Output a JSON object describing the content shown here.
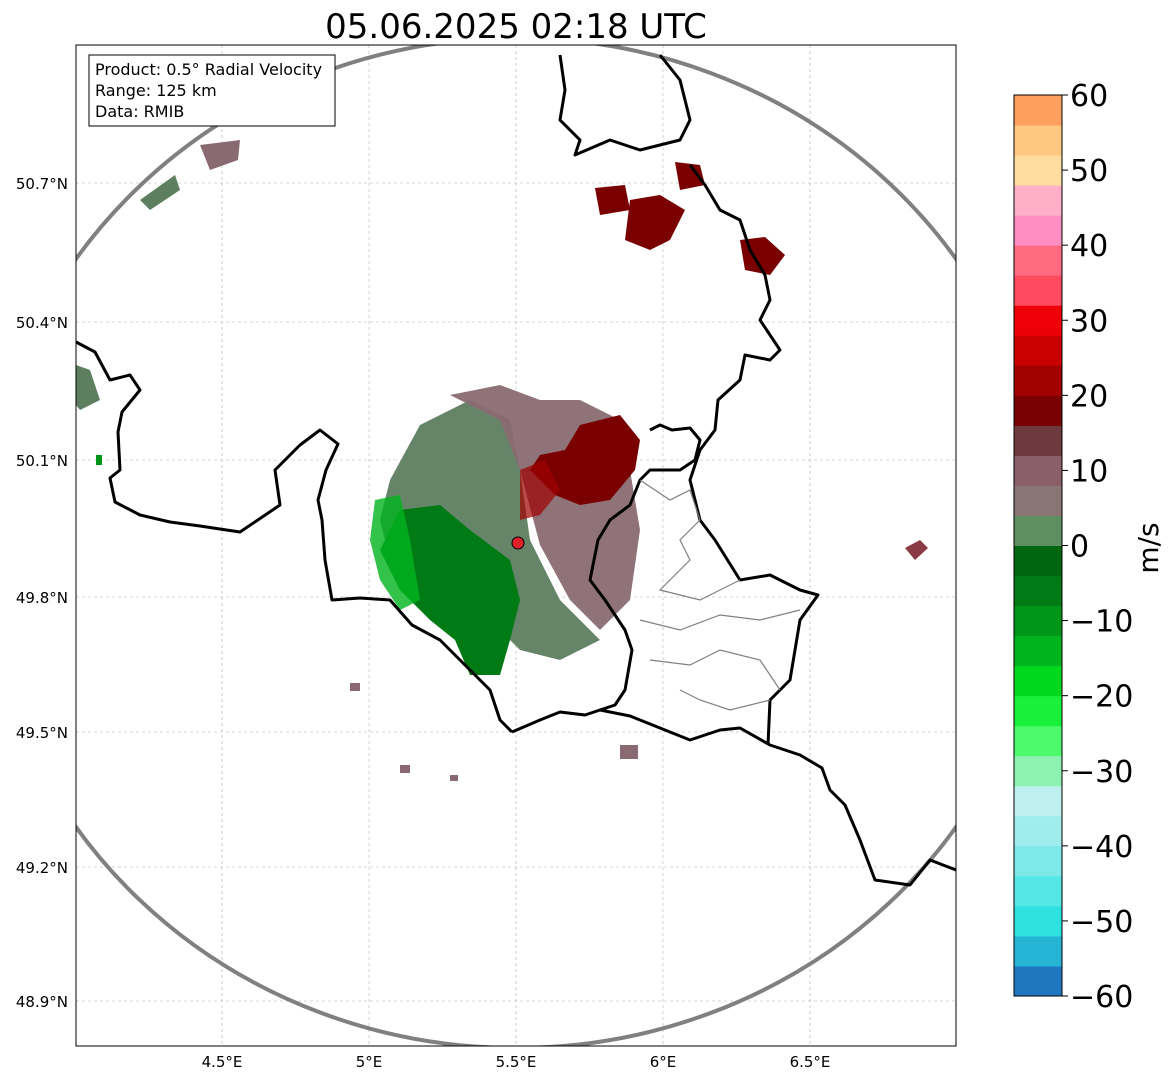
{
  "title": "05.06.2025 02:18 UTC",
  "info_box": {
    "product": "Product: 0.5° Radial Velocity",
    "range": "Range: 125 km",
    "data": "Data: RMIB"
  },
  "lat_ticks": [
    "50.7°N",
    "50.4°N",
    "50.1°N",
    "49.8°N",
    "49.5°N",
    "49.2°N",
    "48.9°N"
  ],
  "lon_ticks": [
    "4.5°E",
    "5°E",
    "5.5°E",
    "6°E",
    "6.5°E"
  ],
  "colorbar": {
    "label": "m/s",
    "ticks": [
      "60",
      "50",
      "40",
      "30",
      "20",
      "10",
      "0",
      "−10",
      "−20",
      "−30",
      "−40",
      "−50",
      "−60"
    ],
    "min": -60,
    "max": 60,
    "step": 5,
    "colors": [
      "#1f77c0",
      "#26b4d4",
      "#2ee0e0",
      "#55e6e6",
      "#7de9e9",
      "#a0eded",
      "#bff0f0",
      "#8ef2b0",
      "#4dfa6c",
      "#18f03a",
      "#00d81e",
      "#00b41e",
      "#00961a",
      "#007a14",
      "#006610",
      "#5d8f63",
      "#8a7575",
      "#8a5f6a",
      "#6e3a3e",
      "#780000",
      "#a00000",
      "#c80000",
      "#ee0008",
      "#ff4a60",
      "#ff6a80",
      "#ff8ec2",
      "#ffb0c8",
      "#ffdca0",
      "#ffc880",
      "#ffa060"
    ]
  },
  "colors": {
    "border": "#000000",
    "range_ring": "#808080",
    "radar_site": "#e0202a",
    "grid": "#b0b0b0",
    "inbound": "#008000",
    "outbound": "#7a0000",
    "near_zero_neg": "#5e7e60",
    "near_zero_pos": "#8a6a72"
  }
}
